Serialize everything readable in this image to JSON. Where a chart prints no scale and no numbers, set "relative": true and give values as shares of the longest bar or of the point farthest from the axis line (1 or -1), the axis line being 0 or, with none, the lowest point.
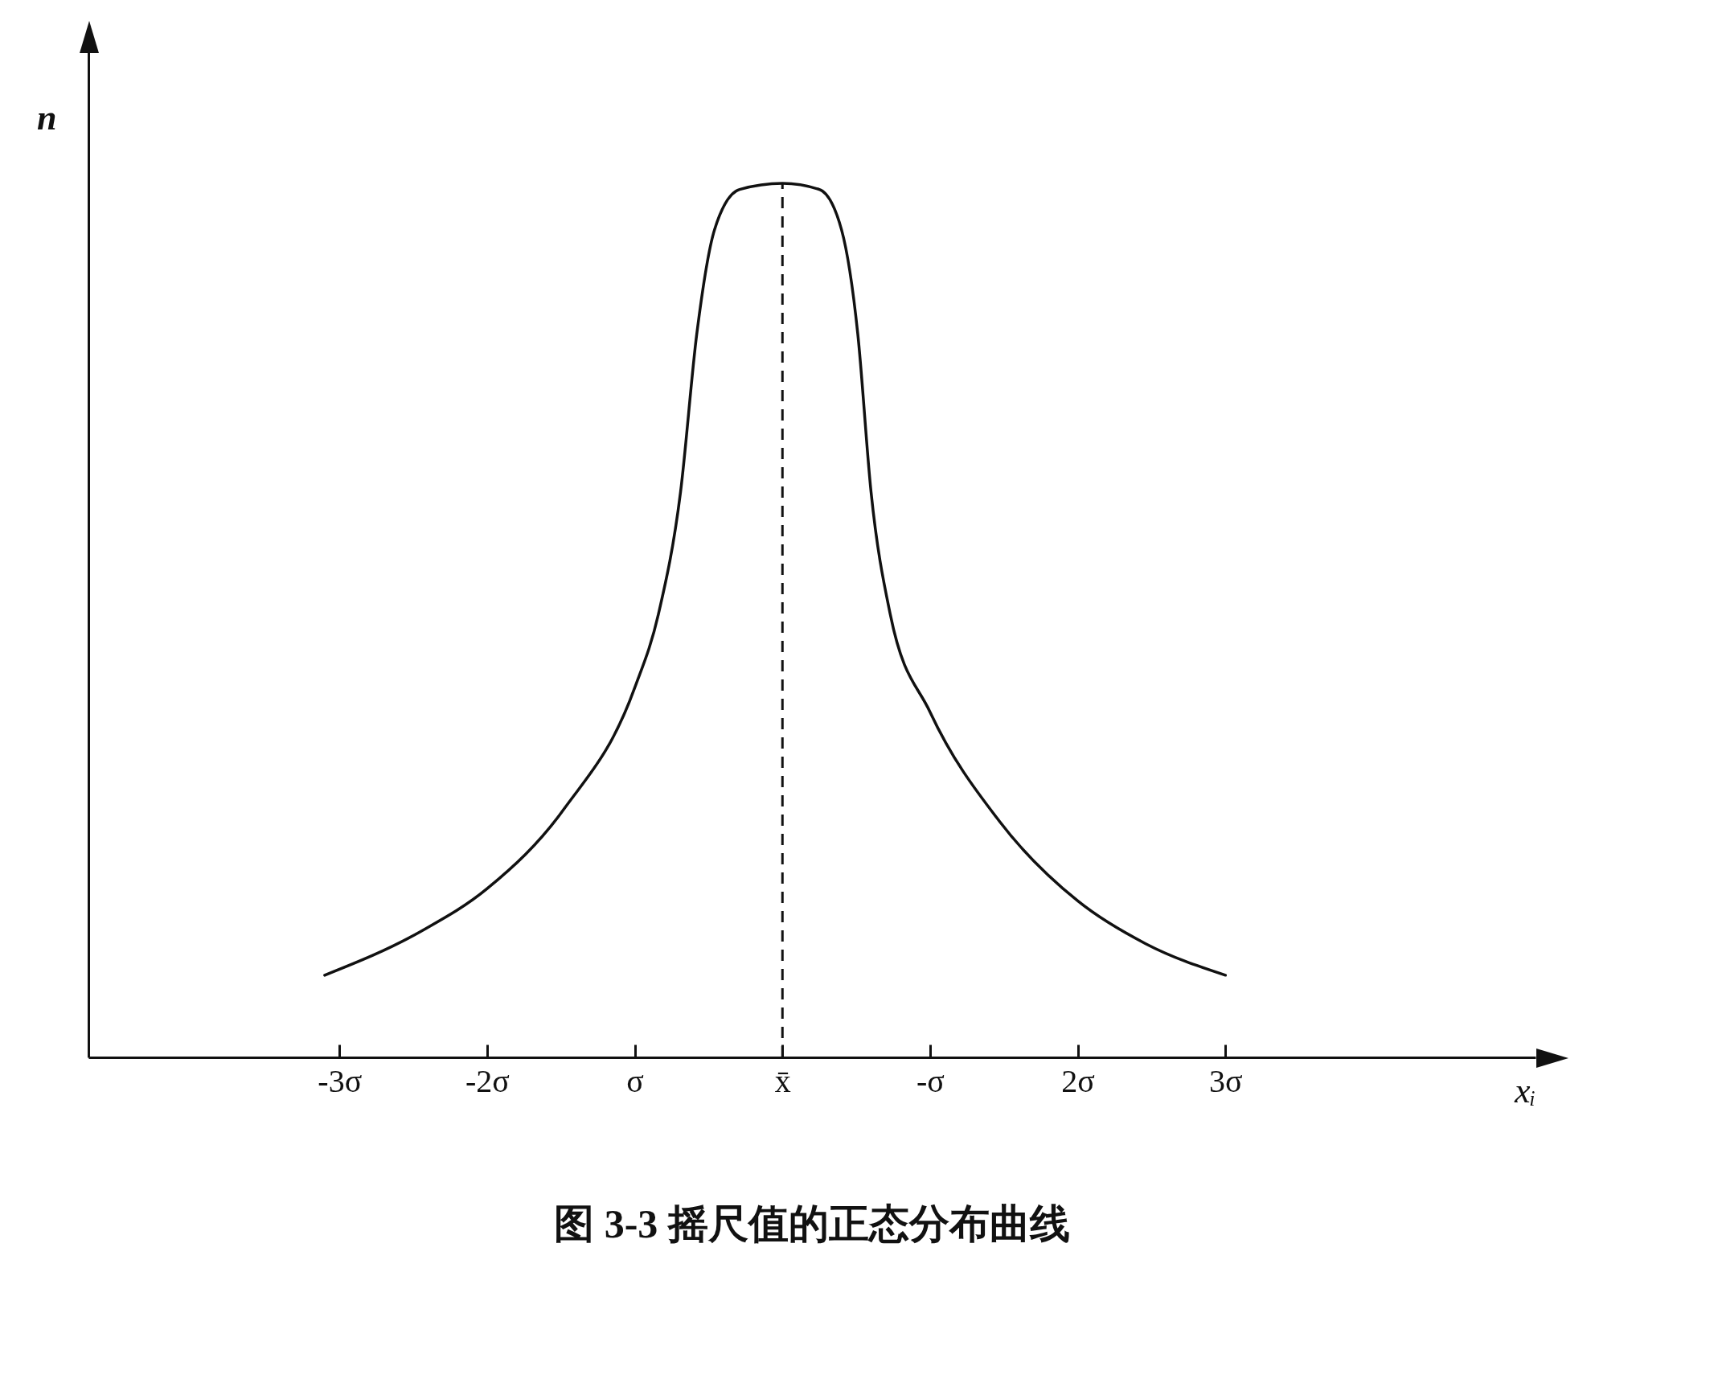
{
  "chart_data": {
    "type": "line",
    "title": "图 3-3  摇尺值的正态分布曲线",
    "xlabel": "xᵢ",
    "ylabel": "n",
    "relative": true,
    "grid": false,
    "marker": "none",
    "line_style": "solid",
    "x": [
      -3.1,
      -2.45,
      -2,
      -1.48,
      -1,
      -0.84,
      -0.69,
      -0.58,
      -0.46,
      -0.29,
      0,
      0.25,
      0.4,
      0.51,
      0.6,
      0.73,
      1,
      1.47,
      2,
      2.46,
      3
    ],
    "series": [
      {
        "color": "#111111",
        "values": [
          0.094,
          0.144,
          0.193,
          0.284,
          0.423,
          0.507,
          0.647,
          0.828,
          0.947,
          0.993,
          1,
          0.993,
          0.947,
          0.828,
          0.647,
          0.507,
          0.395,
          0.27,
          0.179,
          0.13,
          0.094
        ]
      }
    ],
    "xlim": [
      -4.7,
      5.1
    ],
    "xticks": [
      {
        "value": -3,
        "label": "-3σ"
      },
      {
        "value": -2,
        "label": "-2σ"
      },
      {
        "value": -1,
        "label": "σ"
      },
      {
        "value": 0,
        "label": "x̄"
      },
      {
        "value": 1,
        "label": "-σ"
      },
      {
        "value": 2,
        "label": "2σ"
      },
      {
        "value": 3,
        "label": "3σ"
      }
    ],
    "ref_lines": [
      {
        "axis": "x",
        "value": 0,
        "line_style": "dashed",
        "color": "#111111"
      }
    ]
  }
}
